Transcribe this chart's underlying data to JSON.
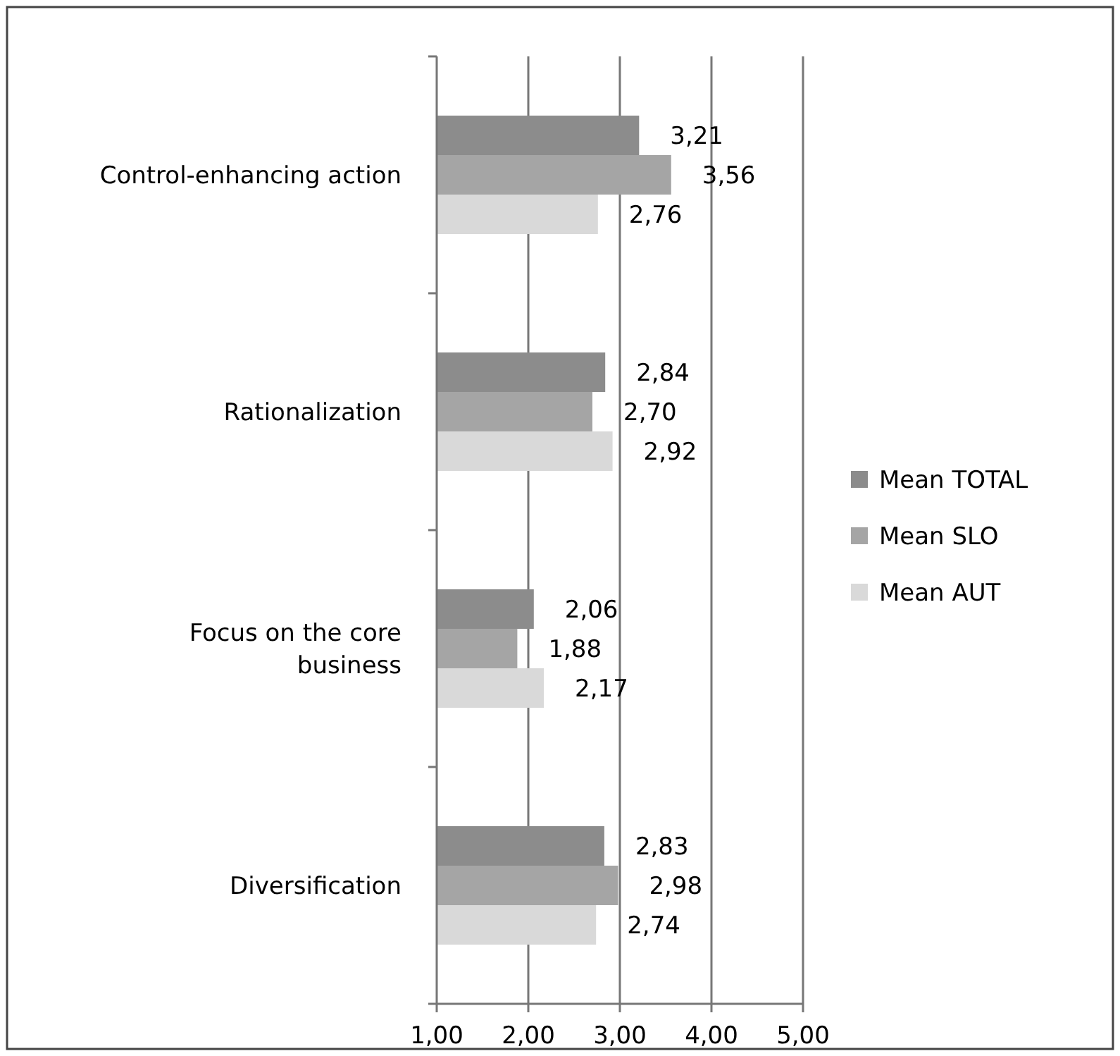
{
  "chart_data": {
    "type": "bar",
    "orientation": "horizontal",
    "categories": [
      "Control-enhancing action",
      "Rationalization",
      "Focus on the core business",
      "Diversification"
    ],
    "series": [
      {
        "name": "Mean TOTAL",
        "color": "#8c8c8c",
        "values": [
          3.21,
          2.84,
          2.06,
          2.83
        ],
        "value_labels": [
          "3,21",
          "2,84",
          "2,06",
          "2,83"
        ]
      },
      {
        "name": "Mean SLO",
        "color": "#a5a5a5",
        "values": [
          3.56,
          2.7,
          1.88,
          2.98
        ],
        "value_labels": [
          "3,56",
          "2,70",
          "1,88",
          "2,98"
        ]
      },
      {
        "name": "Mean AUT",
        "color": "#d9d9d9",
        "values": [
          2.76,
          2.92,
          2.17,
          2.74
        ],
        "value_labels": [
          "2,76",
          "2,92",
          "2,17",
          "2,74"
        ]
      }
    ],
    "xlim": [
      1,
      5
    ],
    "xticks": [
      {
        "value": 1,
        "label": "1,00"
      },
      {
        "value": 2,
        "label": "2,00"
      },
      {
        "value": 3,
        "label": "3,00"
      },
      {
        "value": 4,
        "label": "4,00"
      },
      {
        "value": 5,
        "label": "5,00"
      }
    ],
    "grid": "x",
    "legend": "right"
  }
}
